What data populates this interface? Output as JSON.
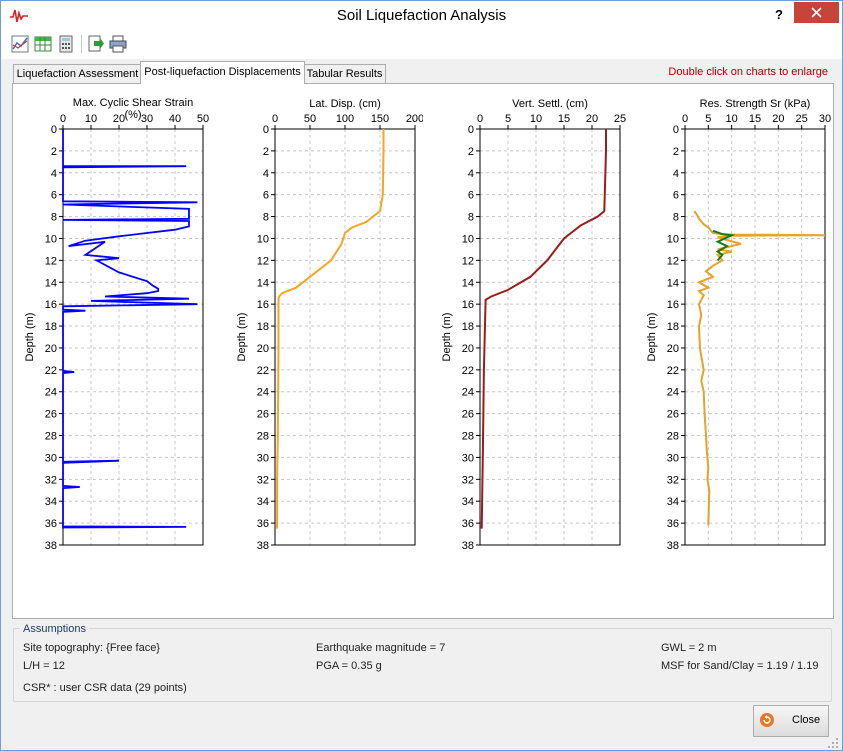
{
  "window": {
    "title": "Soil Liquefaction Analysis",
    "help_label": "?",
    "close_glyph": "✕"
  },
  "toolbar": {
    "icons": [
      "chart-icon",
      "table-icon",
      "calculator-icon",
      "export-icon",
      "print-icon"
    ]
  },
  "tabs": [
    {
      "label": "Liquefaction Assessment",
      "active": false
    },
    {
      "label": "Post-liquefaction Displacements",
      "active": true
    },
    {
      "label": "Tabular Results",
      "active": false
    }
  ],
  "hint": "Double click on charts to enlarge",
  "chart_data": [
    {
      "type": "line",
      "title": "Max. Cyclic Shear Strain",
      "title2": "(%)",
      "xlabel": "",
      "ylabel": "Depth (m)",
      "xlim": [
        0,
        50
      ],
      "ylim": [
        0,
        38
      ],
      "xticks": [
        "0",
        "10",
        "20",
        "30",
        "40",
        "50"
      ],
      "yticks": [
        "0",
        "2",
        "4",
        "6",
        "8",
        "10",
        "12",
        "14",
        "16",
        "18",
        "20",
        "22",
        "24",
        "26",
        "28",
        "30",
        "32",
        "34",
        "36",
        "38"
      ],
      "grid": true,
      "color": "#0000ff",
      "series": [
        {
          "x": [
            0,
            0,
            44,
            0,
            0,
            0,
            48,
            0,
            45,
            45,
            0,
            45,
            45,
            40,
            30,
            20,
            8,
            2,
            15,
            8,
            20,
            12,
            20,
            30,
            32,
            34,
            34,
            30,
            20,
            15,
            45,
            10,
            48,
            0,
            0,
            8,
            0,
            0,
            0,
            4,
            0,
            0,
            0,
            0,
            0,
            20,
            0,
            0,
            0,
            6,
            0,
            0,
            0,
            0,
            44,
            0,
            0
          ],
          "y": [
            0,
            3.4,
            3.4,
            3.5,
            6.5,
            6.6,
            6.7,
            6.9,
            7.3,
            8.2,
            8.3,
            8.4,
            8.9,
            9.2,
            9.5,
            9.8,
            10.2,
            10.7,
            10.3,
            11.5,
            11.8,
            12.0,
            13.1,
            13.9,
            14.3,
            14.6,
            14.8,
            15.0,
            15.2,
            15.3,
            15.5,
            15.7,
            16.0,
            16.2,
            16.5,
            16.6,
            16.7,
            22.0,
            22.1,
            22.2,
            22.3,
            30.3,
            30.4,
            30.45,
            30.4,
            30.3,
            30.5,
            32.5,
            32.6,
            32.7,
            32.8,
            33,
            36.2,
            36.3,
            36.35,
            36.4,
            36.5
          ]
        }
      ]
    },
    {
      "type": "line",
      "title": "Lat. Disp. (cm)",
      "xlabel": "",
      "ylabel": "Depth (m)",
      "xlim": [
        0,
        200
      ],
      "ylim": [
        0,
        38
      ],
      "xticks": [
        "0",
        "50",
        "100",
        "150",
        "200"
      ],
      "yticks": [
        "0",
        "2",
        "4",
        "6",
        "8",
        "10",
        "12",
        "14",
        "16",
        "18",
        "20",
        "22",
        "24",
        "26",
        "28",
        "30",
        "32",
        "34",
        "36",
        "38"
      ],
      "grid": true,
      "color": "#f5a623",
      "series": [
        {
          "x": [
            155,
            155,
            154,
            150,
            130,
            110,
            100,
            95,
            80,
            60,
            30,
            10,
            6,
            5,
            5,
            4,
            3,
            3
          ],
          "y": [
            0,
            2,
            6,
            7.5,
            8.5,
            9.0,
            9.5,
            10.5,
            12.0,
            13.0,
            14.5,
            15.0,
            15.3,
            15.5,
            20,
            28,
            32,
            36.5
          ]
        }
      ]
    },
    {
      "type": "line",
      "title": "Vert. Settl. (cm)",
      "xlabel": "",
      "ylabel": "Depth (m)",
      "xlim": [
        0,
        25
      ],
      "ylim": [
        0,
        38
      ],
      "xticks": [
        "0",
        "5",
        "10",
        "15",
        "20",
        "25"
      ],
      "yticks": [
        "0",
        "2",
        "4",
        "6",
        "8",
        "10",
        "12",
        "14",
        "16",
        "18",
        "20",
        "22",
        "24",
        "26",
        "28",
        "30",
        "32",
        "34",
        "36",
        "38"
      ],
      "grid": true,
      "color": "#9b1c1c",
      "series": [
        {
          "x": [
            22.5,
            22.5,
            22.2,
            21,
            18,
            15,
            12,
            9,
            5,
            2,
            1,
            0.7,
            0.5,
            0.3
          ],
          "y": [
            0,
            2,
            7.5,
            8.0,
            8.8,
            10.0,
            12.0,
            13.5,
            14.7,
            15.3,
            15.6,
            22,
            30,
            36.5
          ]
        }
      ]
    },
    {
      "type": "line",
      "title": "Res. Strength Sr (kPa)",
      "xlabel": "",
      "ylabel": "Depth (m)",
      "xlim": [
        0,
        30
      ],
      "ylim": [
        0,
        38
      ],
      "xticks": [
        "0",
        "5",
        "10",
        "15",
        "20",
        "25",
        "30"
      ],
      "yticks": [
        "0",
        "2",
        "4",
        "6",
        "8",
        "10",
        "12",
        "14",
        "16",
        "18",
        "20",
        "22",
        "24",
        "26",
        "28",
        "30",
        "32",
        "34",
        "36",
        "38"
      ],
      "grid": true,
      "series": [
        {
          "color": "#e6a22a",
          "x": [
            2,
            2.5,
            3,
            4,
            5,
            6,
            8,
            10,
            30,
            10,
            7,
            12,
            7,
            10,
            7,
            8,
            6,
            4.5,
            6,
            3,
            5,
            3,
            4,
            3,
            3.5,
            3,
            3.2,
            4,
            3.5,
            4,
            4.2,
            4.5,
            4.6,
            4.8,
            5,
            4.8,
            5.2,
            5
          ],
          "y": [
            7.5,
            7.8,
            8.2,
            8.7,
            9.0,
            9.5,
            9.6,
            9.65,
            9.7,
            9.75,
            9.9,
            10.5,
            11,
            11.2,
            11.5,
            12,
            12.5,
            13.0,
            13.5,
            14.0,
            14.5,
            14.8,
            15.2,
            16.0,
            17,
            18,
            20,
            22,
            23,
            24,
            26,
            28,
            29,
            30,
            31,
            32,
            33,
            36.2
          ]
        },
        {
          "color": "#1a7a1a",
          "x": [
            6,
            8,
            10,
            9,
            7,
            9,
            7,
            8,
            7
          ],
          "y": [
            9.3,
            9.6,
            9.7,
            9.9,
            10.3,
            10.7,
            11.2,
            11.5,
            12.0
          ]
        }
      ]
    }
  ],
  "assumptions": {
    "title": "Assumptions",
    "site_topography": "Site topography: {Free face}",
    "lh": "L/H = 12",
    "csr": "CSR* : user CSR data (29 points)",
    "magnitude": "Earthquake magnitude = 7",
    "pga": "PGA = 0.35 g",
    "gwl": "GWL = 2 m",
    "msf": "MSF for Sand/Clay = 1.19 / 1.19"
  },
  "footer": {
    "close_label": "Close"
  }
}
